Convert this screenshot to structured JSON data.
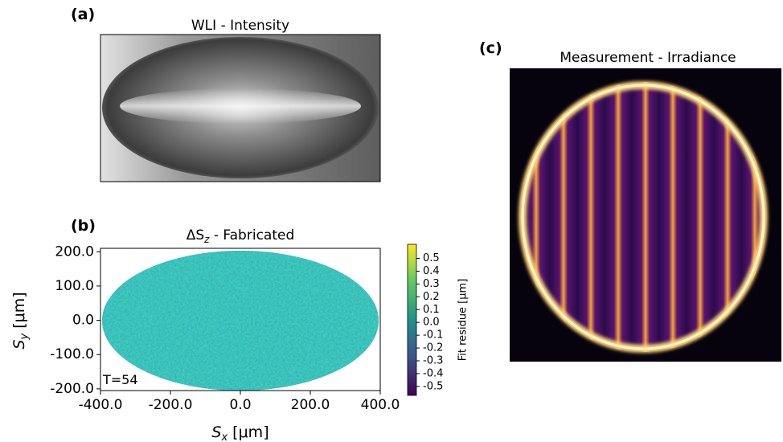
{
  "chart_data": [
    {
      "type": "image",
      "label": "(a)",
      "title": "WLI - Intensity"
    },
    {
      "type": "heatmap",
      "label": "(b)",
      "title": {
        "symbol": "ΔS",
        "subscript": "z",
        "text": " - Fabricated"
      },
      "xlabel": {
        "symbol": "S",
        "subscript": "x",
        "unit": " [μm]"
      },
      "ylabel": {
        "symbol": "S",
        "subscript": "y",
        "unit": " [μm]"
      },
      "annotation": "T=54",
      "xlim": [
        -400,
        400
      ],
      "xticks": [
        {
          "value": -400,
          "label": "-400.0"
        },
        {
          "value": -200,
          "label": "-200.0"
        },
        {
          "value": 0,
          "label": "0.0"
        },
        {
          "value": 200,
          "label": "200.0"
        },
        {
          "value": 400,
          "label": "400.0"
        }
      ],
      "ylim": [
        -205,
        210
      ],
      "yticks": [
        {
          "value": -200,
          "label": "-200.0"
        },
        {
          "value": -100,
          "label": "-100.0"
        },
        {
          "value": 0,
          "label": "0.0"
        },
        {
          "value": 100,
          "label": "100.0"
        },
        {
          "value": 200,
          "label": "200.0"
        }
      ],
      "colorbar": {
        "label": "Fit residue [μm]",
        "clim": [
          -0.57,
          0.61
        ],
        "ticks": [
          -0.5,
          -0.4,
          -0.3,
          -0.2,
          -0.1,
          {
            "value": 0,
            "label": "0.0"
          },
          0.1,
          0.2,
          0.3,
          0.4,
          0.5
        ]
      }
    },
    {
      "type": "image",
      "label": "(c)",
      "title": "Measurement - Irradiance"
    }
  ]
}
